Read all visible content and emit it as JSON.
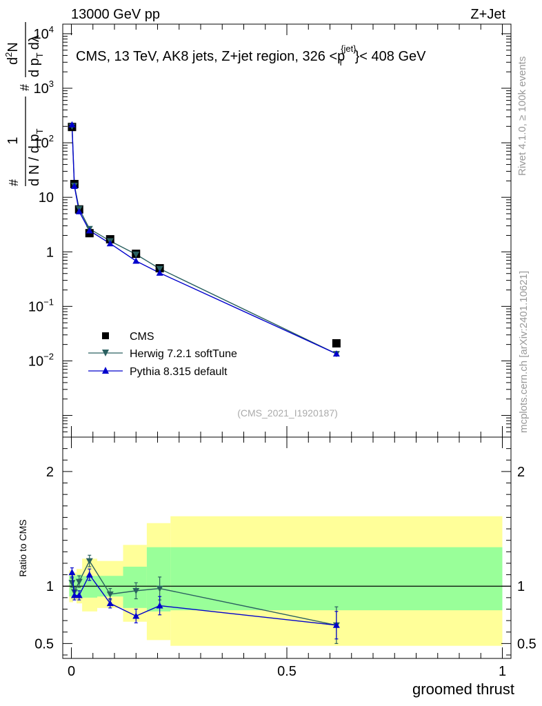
{
  "header": {
    "left": "13000 GeV pp",
    "right": "Z+Jet"
  },
  "side_labels": {
    "rivet": "Rivet 4.1.0, ≥ 100k events",
    "mcplots": "mcplots.cern.ch [arXiv:2401.10621]"
  },
  "chart_data": [
    {
      "type": "line",
      "panel": "main",
      "title": "CMS, 13 TeV, AK8 jets, Z+jet region, 326 <p_T^{jet}< 408 GeV",
      "title_text": {
        "pre": "CMS, 13 TeV, AK8 jets, Z+jet region, 326 <p",
        "sub": "T",
        "sup": "{jet}",
        "post": "}< 408 GeV"
      },
      "ylabel": "# 1/(dN / d p_T #) d^2N/(d p_T dλ)",
      "ylabel_parts": [
        "#",
        "1",
        "d N / d p",
        "T",
        "#",
        "d",
        "2",
        "N",
        "d p",
        "T",
        "dλ"
      ],
      "xlabel": "groomed thrust",
      "yscale": "log",
      "xlim": [
        -0.02,
        1.02
      ],
      "ylim": [
        0.0004,
        15000
      ],
      "yticks": [
        {
          "v": 0.01,
          "base": "10",
          "exp": "−2"
        },
        {
          "v": 0.1,
          "base": "10",
          "exp": "−1"
        },
        {
          "v": 1,
          "base": "1",
          "exp": ""
        },
        {
          "v": 10,
          "base": "10",
          "exp": ""
        },
        {
          "v": 100,
          "base": "10",
          "exp": "2"
        },
        {
          "v": 1000,
          "base": "10",
          "exp": "3"
        },
        {
          "v": 10000,
          "base": "10",
          "exp": "4"
        }
      ],
      "legend_position": "lower-left",
      "watermark": "(CMS_2021_I1920187)",
      "series": [
        {
          "name": "CMS",
          "style": "markers",
          "marker": "square",
          "color": "#000000",
          "x": [
            0.0015,
            0.007,
            0.018,
            0.042,
            0.09,
            0.15,
            0.205,
            0.615
          ],
          "y": [
            195,
            17.5,
            6.0,
            2.2,
            1.7,
            0.92,
            0.5,
            0.021
          ]
        },
        {
          "name": "Herwig 7.2.1 softTune",
          "style": "line",
          "marker": "triangle-down",
          "color": "#2a6060",
          "x": [
            0.0015,
            0.007,
            0.018,
            0.042,
            0.09,
            0.15,
            0.205,
            0.615
          ],
          "y": [
            200,
            16.5,
            6.2,
            2.65,
            1.58,
            0.9,
            0.49,
            0.0135
          ]
        },
        {
          "name": "Pythia 8.315 default",
          "style": "line",
          "marker": "triangle-up",
          "color": "#0000cc",
          "x": [
            0.0015,
            0.007,
            0.018,
            0.042,
            0.09,
            0.15,
            0.205,
            0.615
          ],
          "y": [
            215,
            16.0,
            5.5,
            2.45,
            1.42,
            0.68,
            0.41,
            0.0135
          ]
        }
      ]
    },
    {
      "type": "line",
      "panel": "ratio",
      "ylabel": "Ratio to CMS",
      "xlabel": "groomed thrust",
      "xlim": [
        -0.02,
        1.02
      ],
      "ylim": [
        0.37,
        2.3
      ],
      "yscale": "linear",
      "yticks": [
        0.5,
        1,
        2
      ],
      "xticks": [
        0,
        0.5,
        1
      ],
      "bands": [
        {
          "x0": -0.005,
          "x1": 0.004,
          "y_ylw": [
            0.86,
            1.14
          ],
          "y_grn": [
            0.91,
            1.09
          ]
        },
        {
          "x0": 0.004,
          "x1": 0.012,
          "y_ylw": [
            0.88,
            1.12
          ],
          "y_grn": [
            0.91,
            1.09
          ]
        },
        {
          "x0": 0.012,
          "x1": 0.025,
          "y_ylw": [
            0.85,
            1.15
          ],
          "y_grn": [
            0.9,
            1.1
          ]
        },
        {
          "x0": 0.025,
          "x1": 0.06,
          "y_ylw": [
            0.78,
            1.24
          ],
          "y_grn": [
            0.9,
            1.09
          ]
        },
        {
          "x0": 0.06,
          "x1": 0.12,
          "y_ylw": [
            0.81,
            1.22
          ],
          "y_grn": [
            0.91,
            1.09
          ]
        },
        {
          "x0": 0.12,
          "x1": 0.175,
          "y_ylw": [
            0.69,
            1.36
          ],
          "y_grn": [
            0.81,
            1.17
          ]
        },
        {
          "x0": 0.175,
          "x1": 0.23,
          "y_ylw": [
            0.53,
            1.55
          ],
          "y_grn": [
            0.78,
            1.34
          ]
        },
        {
          "x0": 0.23,
          "x1": 1.0,
          "y_ylw": [
            0.48,
            1.61
          ],
          "y_grn": [
            0.79,
            1.34
          ]
        }
      ],
      "reference_line": 1,
      "series": [
        {
          "name": "Herwig 7.2.1 softTune",
          "marker": "triangle-down",
          "color": "#2a6060",
          "x": [
            0.0015,
            0.007,
            0.018,
            0.042,
            0.09,
            0.15,
            0.205,
            0.615
          ],
          "y": [
            1.03,
            0.95,
            1.04,
            1.22,
            0.93,
            0.96,
            0.98,
            0.66
          ],
          "err": [
            0.04,
            0.04,
            0.05,
            0.05,
            0.05,
            0.07,
            0.1,
            0.16
          ]
        },
        {
          "name": "Pythia 8.315 default",
          "marker": "triangle-up",
          "color": "#0000cc",
          "x": [
            0.0015,
            0.007,
            0.018,
            0.042,
            0.09,
            0.15,
            0.205,
            0.615
          ],
          "y": [
            1.12,
            0.92,
            0.92,
            1.1,
            0.85,
            0.74,
            0.83,
            0.66
          ],
          "err": [
            0.04,
            0.04,
            0.04,
            0.05,
            0.04,
            0.06,
            0.08,
            0.12
          ]
        }
      ]
    }
  ]
}
